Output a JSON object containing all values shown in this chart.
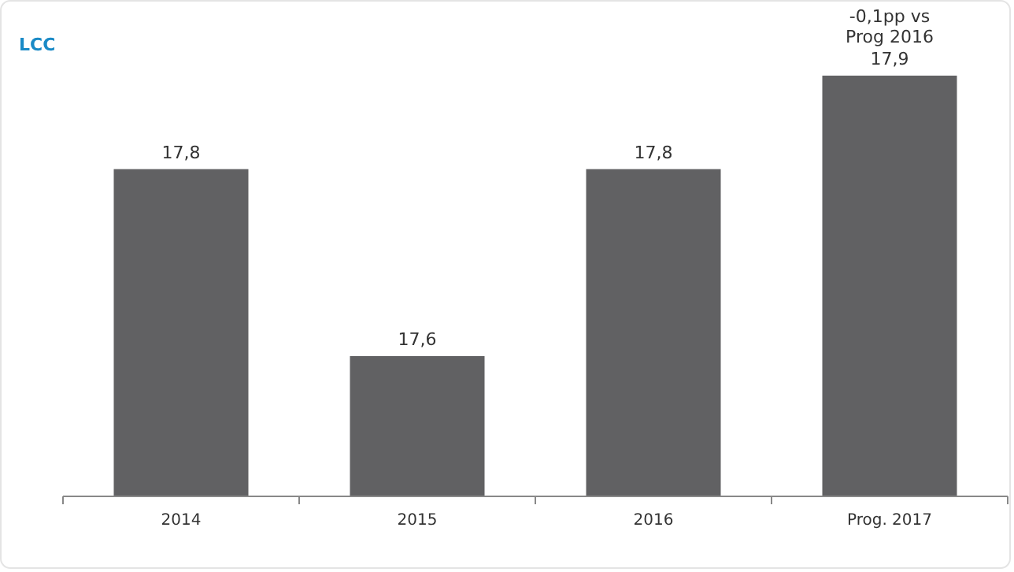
{
  "chart_data": {
    "type": "bar",
    "title": "LCC",
    "categories": [
      "2014",
      "2015",
      "2016",
      "Prog. 2017"
    ],
    "values": [
      17.8,
      17.6,
      17.8,
      17.9
    ],
    "color": "#616163",
    "value_labels": [
      "17,8",
      "17,6",
      "17,8",
      "17,9"
    ],
    "ylim": [
      17.45,
      17.9
    ],
    "tick_labels": "x",
    "annotations": [
      {
        "text": "-0,1pp vs Prog 2016",
        "x": "Prog. 2017",
        "y": 17.9
      }
    ]
  }
}
